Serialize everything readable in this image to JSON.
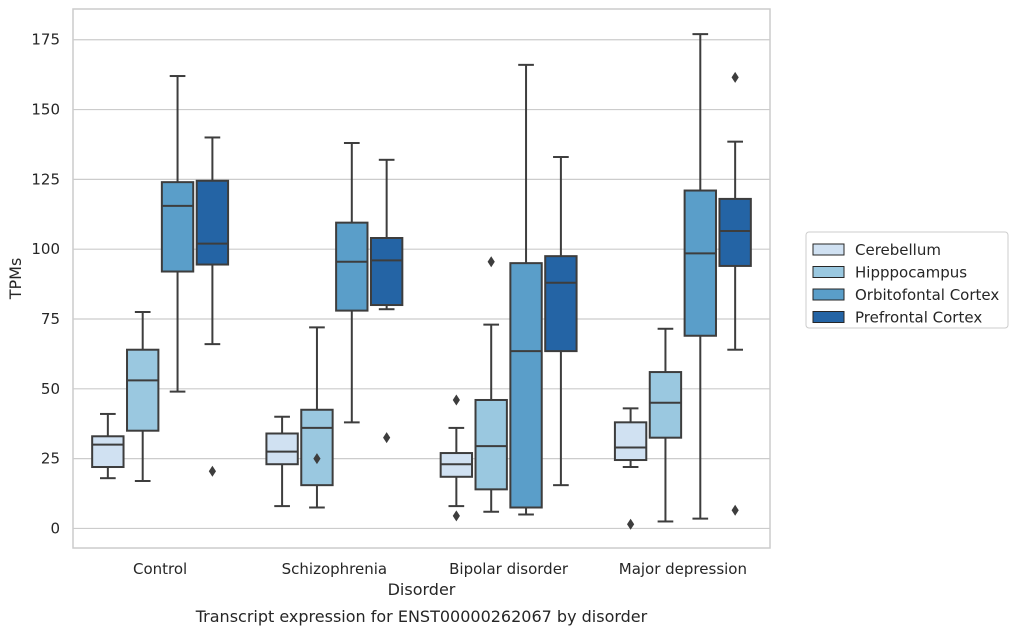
{
  "chart_data": {
    "type": "box",
    "caption": "Transcript expression for ENST00000262067 by disorder",
    "xlabel": "Disorder",
    "ylabel": "TPMs",
    "ylim": [
      -7,
      186
    ],
    "yticks": [
      0,
      25,
      50,
      75,
      100,
      125,
      150,
      175
    ],
    "categories": [
      "Control",
      "Schizophrenia",
      "Bipolar disorder",
      "Major depression"
    ],
    "grid": "horizontal",
    "legend_position": "right",
    "series": [
      {
        "name": "Cerebellum",
        "color": "#d0e1f2",
        "boxes": [
          {
            "whisker_low": 18,
            "q1": 22,
            "median": 30,
            "q3": 33,
            "whisker_high": 41,
            "outliers": []
          },
          {
            "whisker_low": 8,
            "q1": 23,
            "median": 27.5,
            "q3": 34,
            "whisker_high": 40,
            "outliers": []
          },
          {
            "whisker_low": 8,
            "q1": 18.5,
            "median": 23,
            "q3": 27,
            "whisker_high": 36,
            "outliers": [
              4.5,
              46
            ]
          },
          {
            "whisker_low": 22,
            "q1": 24.5,
            "median": 29,
            "q3": 38,
            "whisker_high": 43,
            "outliers": [
              1.5
            ]
          }
        ]
      },
      {
        "name": "Hipppocampus",
        "color": "#9ac8e0",
        "boxes": [
          {
            "whisker_low": 17,
            "q1": 35,
            "median": 53,
            "q3": 64,
            "whisker_high": 77.5,
            "outliers": []
          },
          {
            "whisker_low": 7.5,
            "q1": 15.5,
            "median": 36,
            "q3": 42.5,
            "whisker_high": 72,
            "outliers": [
              25
            ]
          },
          {
            "whisker_low": 6,
            "q1": 14,
            "median": 29.5,
            "q3": 46,
            "whisker_high": 73,
            "outliers": [
              95.5
            ]
          },
          {
            "whisker_low": 2.5,
            "q1": 32.5,
            "median": 45,
            "q3": 56,
            "whisker_high": 71.5,
            "outliers": []
          }
        ]
      },
      {
        "name": "Orbitofontal Cortex",
        "color": "#5a9ec9",
        "boxes": [
          {
            "whisker_low": 49,
            "q1": 92,
            "median": 115.5,
            "q3": 124,
            "whisker_high": 162,
            "outliers": []
          },
          {
            "whisker_low": 38,
            "q1": 78,
            "median": 95.5,
            "q3": 109.5,
            "whisker_high": 138,
            "outliers": []
          },
          {
            "whisker_low": 5,
            "q1": 7.5,
            "median": 63.5,
            "q3": 95,
            "whisker_high": 166,
            "outliers": []
          },
          {
            "whisker_low": 3.5,
            "q1": 69,
            "median": 98.5,
            "q3": 121,
            "whisker_high": 177,
            "outliers": []
          }
        ]
      },
      {
        "name": "Prefrontal Cortex",
        "color": "#2464a5",
        "boxes": [
          {
            "whisker_low": 66,
            "q1": 94.5,
            "median": 102,
            "q3": 124.5,
            "whisker_high": 140,
            "outliers": [
              20.5
            ]
          },
          {
            "whisker_low": 78.5,
            "q1": 80,
            "median": 96,
            "q3": 104,
            "whisker_high": 132,
            "outliers": [
              32.5
            ]
          },
          {
            "whisker_low": 15.5,
            "q1": 63.5,
            "median": 88,
            "q3": 97.5,
            "whisker_high": 133,
            "outliers": []
          },
          {
            "whisker_low": 64,
            "q1": 94,
            "median": 106.5,
            "q3": 118,
            "whisker_high": 138.5,
            "outliers": [
              6.5,
              161.5
            ]
          }
        ]
      }
    ]
  }
}
